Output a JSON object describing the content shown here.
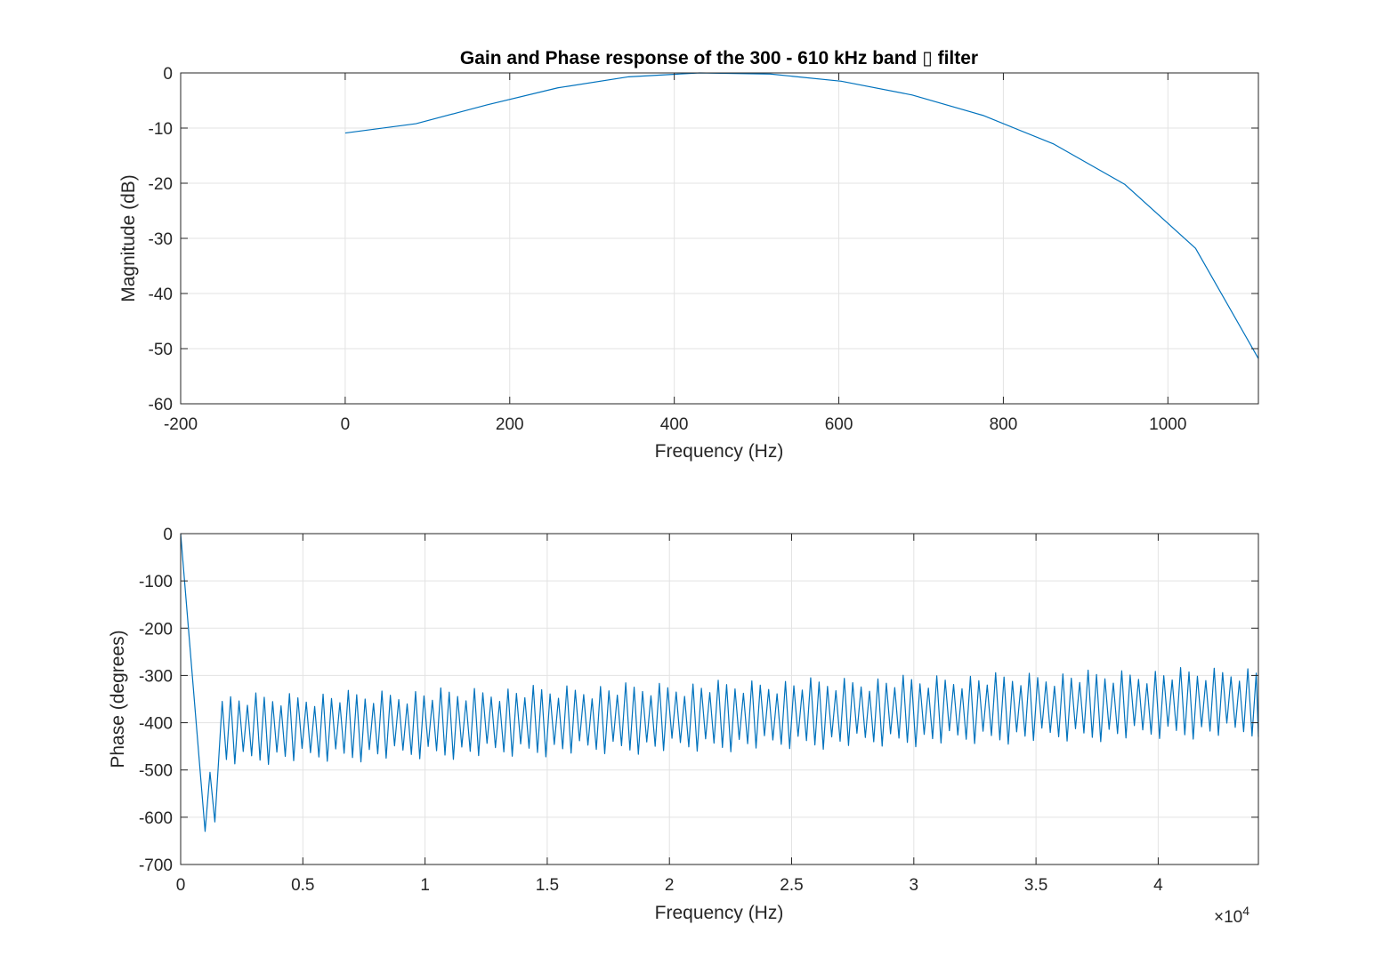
{
  "chart_data": [
    {
      "type": "line",
      "title": "Gain and Phase response of the 300 - 610 kHz band ▯ filter",
      "xlabel": "Frequency (Hz)",
      "ylabel": "Magnitude (dB)",
      "xlim": [
        -200,
        1110
      ],
      "ylim": [
        -60,
        0
      ],
      "xticks": [
        -200,
        0,
        200,
        400,
        600,
        800,
        1000
      ],
      "xtick_labels": [
        "-200",
        "0",
        "200",
        "400",
        "600",
        "800",
        "1000"
      ],
      "yticks": [
        -60,
        -50,
        -40,
        -30,
        -20,
        -10,
        0
      ],
      "ytick_labels": [
        "-60",
        "-50",
        "-40",
        "-30",
        "-20",
        "-10",
        "0"
      ],
      "grid": true,
      "color": "#0072bd",
      "series": [
        {
          "x": [
            0,
            86.1,
            172.3,
            258.4,
            344.5,
            430.7,
            516.8,
            602.9,
            689.1,
            775.2,
            861.3,
            947.5,
            1033.6,
            1110
          ],
          "y": [
            -10.9,
            -9.2,
            -5.8,
            -2.7,
            -0.7,
            0,
            -0.2,
            -1.5,
            -4.0,
            -7.7,
            -12.9,
            -20.2,
            -31.8,
            -51.8
          ]
        }
      ]
    },
    {
      "type": "line",
      "title": "",
      "xlabel": "Frequency (Hz)",
      "ylabel": "Phase (degrees)",
      "xlim": [
        0,
        44100
      ],
      "ylim": [
        -700,
        0
      ],
      "xticks": [
        0,
        5000,
        10000,
        15000,
        20000,
        25000,
        30000,
        35000,
        40000
      ],
      "xtick_labels": [
        "0",
        "0.5",
        "1",
        "1.5",
        "2",
        "2.5",
        "3",
        "3.5",
        "4"
      ],
      "x_exponent_label": "×10",
      "x_exponent": "4",
      "yticks": [
        -700,
        -600,
        -500,
        -400,
        -300,
        -200,
        -100,
        0
      ],
      "ytick_labels": [
        "-700",
        "-600",
        "-500",
        "-400",
        "-300",
        "-200",
        "-100",
        "0"
      ],
      "grid": true,
      "color": "#0072bd",
      "series": [
        {
          "x": [
            0,
            1000,
            1200,
            1400,
            1700
          ],
          "y": [
            0,
            -630,
            -505,
            -610,
            -355
          ],
          "oscillation": {
            "x_start": 1700,
            "x_end": 44100,
            "half_period": 172,
            "peak_start": -355,
            "peak_end": -295,
            "trough_start": -475,
            "trough_end": -415
          }
        }
      ]
    }
  ]
}
